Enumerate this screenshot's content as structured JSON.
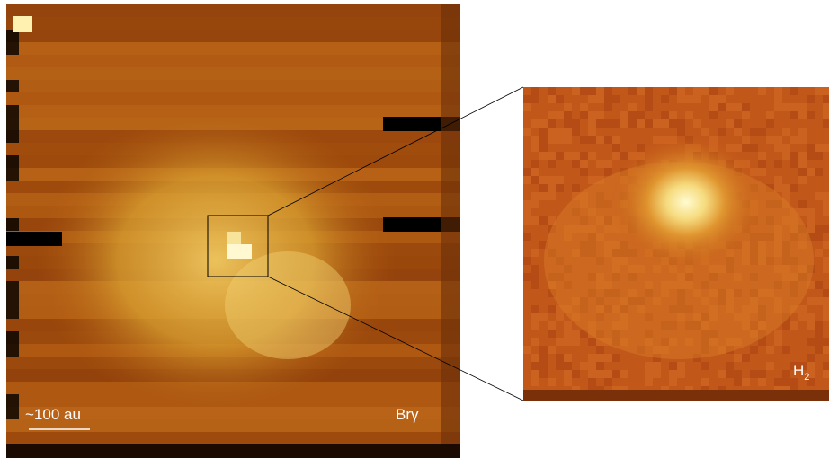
{
  "panels": {
    "left": {
      "label": "Brγ",
      "scale_bar": "~100 au"
    },
    "right": {
      "label": "H",
      "label_subscript": "2"
    }
  }
}
